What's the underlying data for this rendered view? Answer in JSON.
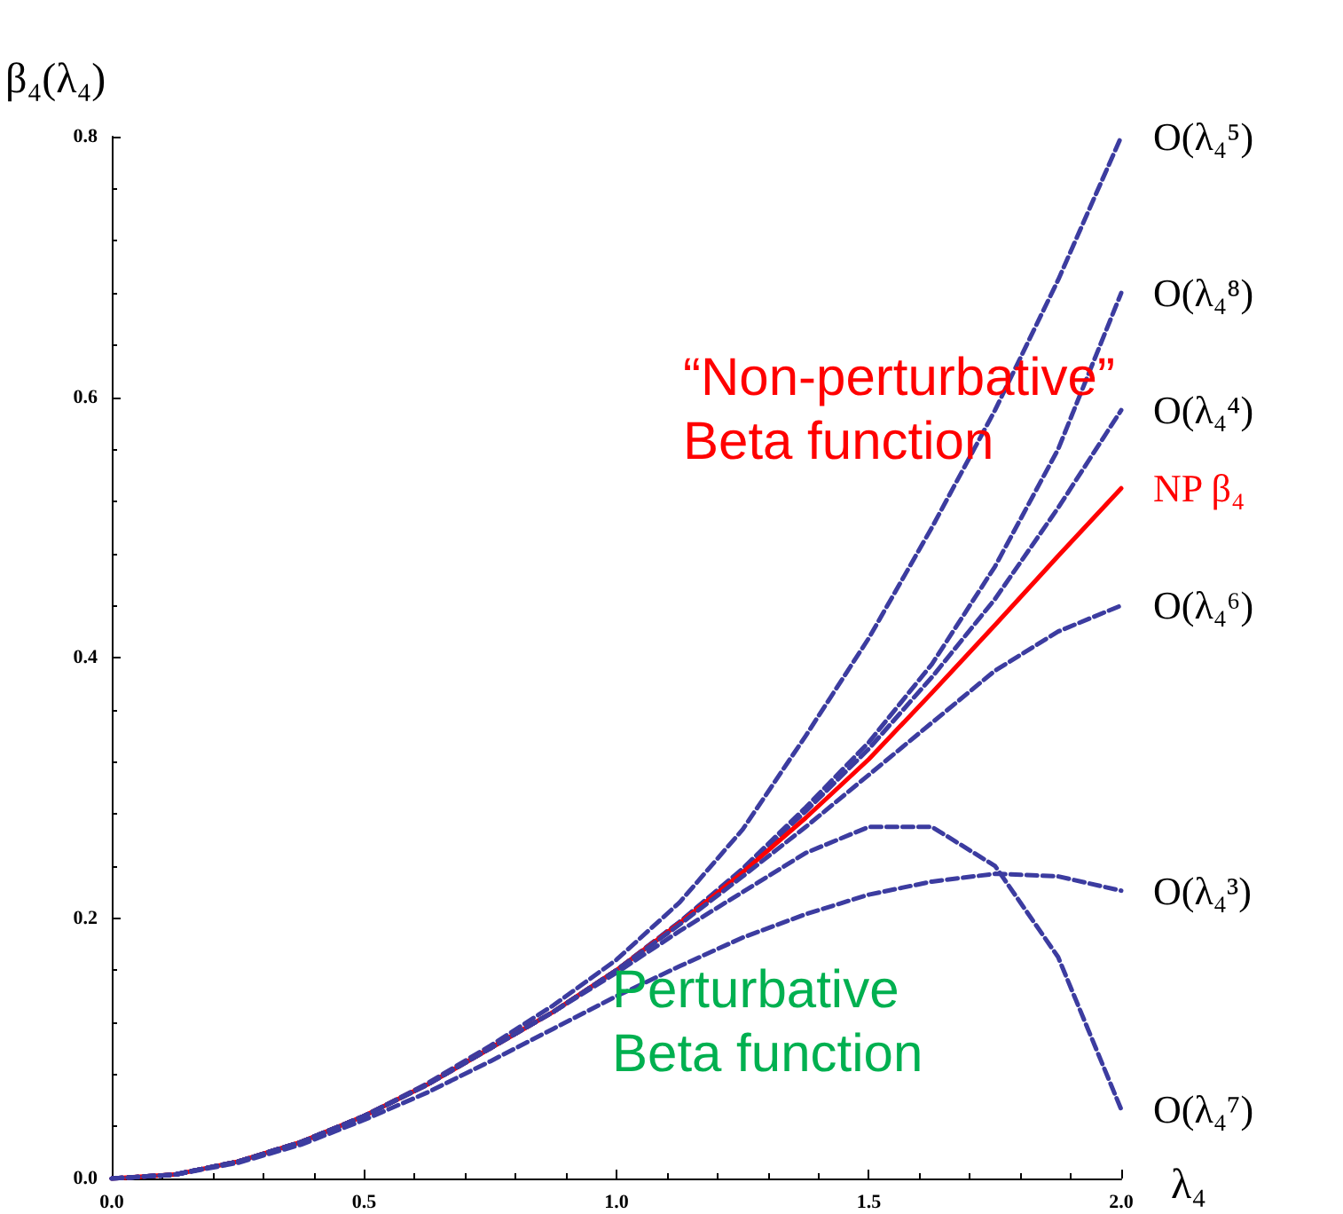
{
  "chart_data": {
    "type": "line",
    "ylabel": "β₄(λ₄)",
    "xlabel": "λ₄",
    "annotations": [
      "“Non-perturbative”\nBeta function",
      "Perturbative\nBeta function"
    ],
    "x": [
      0,
      0.125,
      0.25,
      0.375,
      0.5,
      0.625,
      0.75,
      0.875,
      1,
      1.125,
      1.25,
      1.375,
      1.5,
      1.625,
      1.75,
      1.875,
      2
    ],
    "series": [
      {
        "name": "O(λ₄⁵)",
        "color": "#3c3ca0",
        "line_style": "dashed",
        "values": [
          0,
          0.003,
          0.013,
          0.028,
          0.048,
          0.073,
          0.102,
          0.133,
          0.168,
          0.212,
          0.268,
          0.34,
          0.415,
          0.5,
          0.59,
          0.69,
          0.8
        ]
      },
      {
        "name": "O(λ₄⁸)",
        "color": "#3c3ca0",
        "line_style": "dashed",
        "values": [
          0,
          0.003,
          0.013,
          0.028,
          0.048,
          0.072,
          0.1,
          0.128,
          0.16,
          0.197,
          0.238,
          0.285,
          0.335,
          0.395,
          0.47,
          0.56,
          0.68
        ]
      },
      {
        "name": "O(λ₄⁴)",
        "color": "#3c3ca0",
        "line_style": "dashed",
        "values": [
          0,
          0.003,
          0.013,
          0.028,
          0.048,
          0.072,
          0.1,
          0.128,
          0.16,
          0.197,
          0.237,
          0.282,
          0.33,
          0.385,
          0.445,
          0.515,
          0.59
        ]
      },
      {
        "name": "NP β₄",
        "color": "#ff0000",
        "line_style": "solid",
        "values": [
          0,
          0.003,
          0.013,
          0.028,
          0.048,
          0.072,
          0.1,
          0.128,
          0.16,
          0.196,
          0.235,
          0.277,
          0.322,
          0.373,
          0.425,
          0.478,
          0.53
        ]
      },
      {
        "name": "O(λ₄⁶)",
        "color": "#3c3ca0",
        "line_style": "dashed",
        "values": [
          0,
          0.003,
          0.013,
          0.028,
          0.048,
          0.072,
          0.1,
          0.128,
          0.16,
          0.195,
          0.232,
          0.27,
          0.31,
          0.35,
          0.39,
          0.42,
          0.44
        ]
      },
      {
        "name": "O(λ₄³)",
        "color": "#3c3ca0",
        "line_style": "dashed",
        "values": [
          0,
          0.003,
          0.012,
          0.026,
          0.045,
          0.066,
          0.09,
          0.115,
          0.14,
          0.163,
          0.185,
          0.203,
          0.218,
          0.228,
          0.234,
          0.232,
          0.221
        ]
      },
      {
        "name": "O(λ₄⁷)",
        "color": "#3c3ca0",
        "line_style": "dashed",
        "values": [
          0,
          0.003,
          0.013,
          0.028,
          0.048,
          0.072,
          0.1,
          0.128,
          0.158,
          0.19,
          0.22,
          0.25,
          0.27,
          0.27,
          0.24,
          0.17,
          0.053
        ]
      }
    ],
    "xlim": [
      0,
      2
    ],
    "xticks": [
      {
        "value": 0,
        "label": "0.0"
      },
      0.5,
      {
        "value": 1,
        "label": "1.0"
      },
      1.5,
      {
        "value": 2,
        "label": "2.0"
      }
    ],
    "ylim": [
      0,
      0.8
    ],
    "yticks": [
      {
        "value": 0,
        "label": "0.0"
      },
      0.2,
      0.4,
      0.6,
      0.8
    ],
    "grid": false,
    "legend": false,
    "marker": "none"
  }
}
